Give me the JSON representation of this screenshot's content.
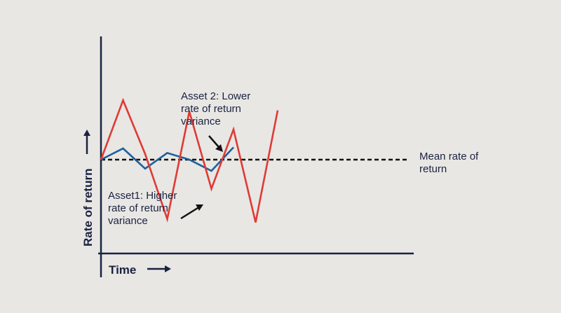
{
  "chart_data": {
    "type": "line",
    "title": "",
    "xlabel": "Time",
    "ylabel": "Rate of return",
    "x": [
      0,
      1,
      2,
      3,
      4,
      5,
      6,
      7,
      8,
      9,
      10,
      11,
      12
    ],
    "series": [
      {
        "name": "Asset1: Higher rate of return variance",
        "color": "#e03a35",
        "points": [
          [
            0,
            0
          ],
          [
            1,
            5.3
          ],
          [
            2,
            0.5
          ],
          [
            3,
            -5.3
          ],
          [
            4,
            4.3
          ],
          [
            5,
            -2.6
          ],
          [
            6,
            2.7
          ],
          [
            7,
            -5.6
          ],
          [
            8,
            4.4
          ]
        ]
      },
      {
        "name": "Asset 2: Lower rate of return variance",
        "color": "#1f5f9c",
        "points": [
          [
            0,
            0
          ],
          [
            1,
            1.0
          ],
          [
            2,
            -0.8
          ],
          [
            3,
            0.6
          ],
          [
            4,
            0
          ],
          [
            5,
            -1.0
          ],
          [
            6,
            1.1
          ]
        ]
      }
    ],
    "mean_line": {
      "value": 0,
      "label": "Mean rate of return",
      "style": "dashed"
    },
    "annotations": [
      "Asset 2: Lower rate of return variance",
      "Asset1: Higher rate of return variance"
    ],
    "grid": false,
    "legend": "none"
  },
  "labels": {
    "asset2_line1": "Asset 2: Lower",
    "asset2_line2": "rate of return",
    "asset2_line3": "variance",
    "asset1_line1": "Asset1: Higher",
    "asset1_line2": "rate of return",
    "asset1_line3": "variance",
    "mean_line1": "Mean rate of",
    "mean_line2": "return",
    "xlabel": "Time",
    "ylabel": "Rate of return"
  },
  "colors": {
    "axis": "#1b2240",
    "asset1": "#e03a35",
    "asset2": "#1f5f9c",
    "mean": "#111111",
    "background": "#e8e7e4"
  }
}
